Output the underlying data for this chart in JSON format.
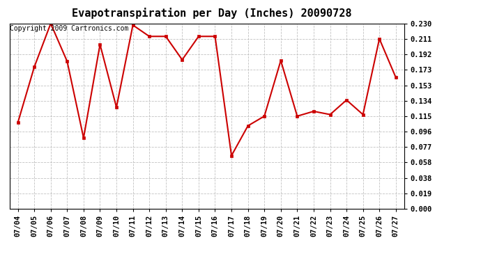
{
  "title": "Evapotranspiration per Day (Inches) 20090728",
  "copyright": "Copyright 2009 Cartronics.com",
  "x_labels": [
    "07/04",
    "07/05",
    "07/06",
    "07/07",
    "07/08",
    "07/09",
    "07/10",
    "07/11",
    "07/12",
    "07/13",
    "07/14",
    "07/15",
    "07/16",
    "07/17",
    "07/18",
    "07/19",
    "07/20",
    "07/21",
    "07/22",
    "07/23",
    "07/24",
    "07/25",
    "07/26",
    "07/27"
  ],
  "y_values": [
    0.107,
    0.176,
    0.23,
    0.183,
    0.088,
    0.204,
    0.126,
    0.228,
    0.214,
    0.214,
    0.185,
    0.214,
    0.214,
    0.066,
    0.103,
    0.115,
    0.184,
    0.115,
    0.121,
    0.117,
    0.135,
    0.117,
    0.211,
    0.163
  ],
  "line_color": "#cc0000",
  "marker": "s",
  "marker_size": 3,
  "ylim": [
    0.0,
    0.23
  ],
  "yticks": [
    0.0,
    0.019,
    0.038,
    0.058,
    0.077,
    0.096,
    0.115,
    0.134,
    0.153,
    0.173,
    0.192,
    0.211,
    0.23
  ],
  "background_color": "#ffffff",
  "grid_color": "#bbbbbb",
  "title_fontsize": 11,
  "copyright_fontsize": 7,
  "tick_fontsize": 7.5,
  "linewidth": 1.5
}
